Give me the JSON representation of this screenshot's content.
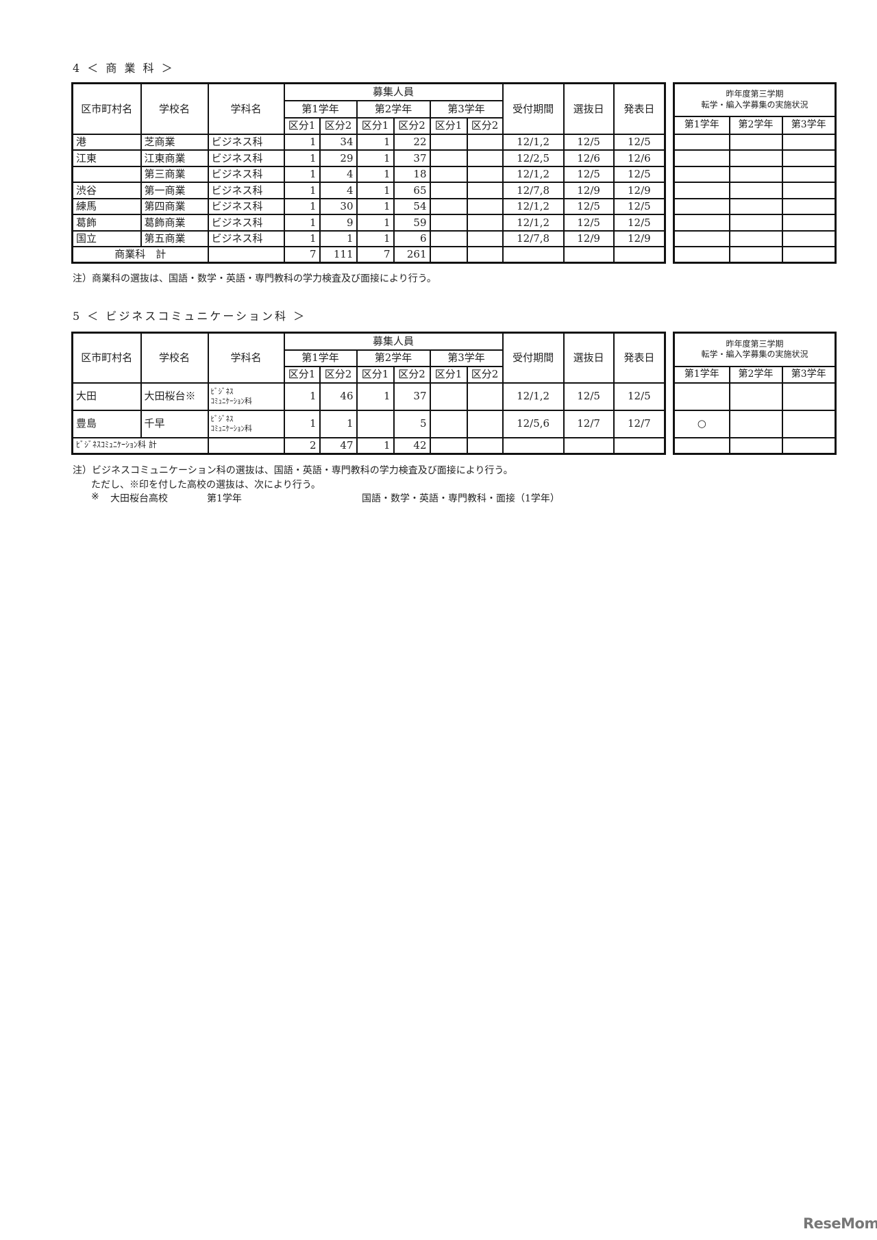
{
  "headers": {
    "municipality": "区市町村名",
    "school": "学校名",
    "department": "学科名",
    "recruitment": "募集人員",
    "grades": [
      "第1学年",
      "第2学年",
      "第3学年"
    ],
    "divisions": [
      "区分1",
      "区分2"
    ],
    "reception": "受付期間",
    "selection_date": "選抜日",
    "announcement_date": "発表日",
    "side_title": "昨年度第三学期\n転学・編入学募集の実施状況"
  },
  "sections": [
    {
      "heading": "4 ＜ 商 業 科 ＞",
      "rows": [
        {
          "municipality": "港",
          "school": "芝商業",
          "department": "ビジネス科",
          "values": [
            "1",
            "34",
            "1",
            "22",
            "",
            ""
          ],
          "reception": "12/1,2",
          "selection": "12/5",
          "announcement": "12/5",
          "prev": [
            "",
            "",
            ""
          ]
        },
        {
          "municipality": "江東",
          "school": "江東商業",
          "department": "ビジネス科",
          "values": [
            "1",
            "29",
            "1",
            "37",
            "",
            ""
          ],
          "reception": "12/2,5",
          "selection": "12/6",
          "announcement": "12/6",
          "prev": [
            "",
            "",
            ""
          ]
        },
        {
          "municipality": "",
          "school": "第三商業",
          "department": "ビジネス科",
          "values": [
            "1",
            "4",
            "1",
            "18",
            "",
            ""
          ],
          "reception": "12/1,2",
          "selection": "12/5",
          "announcement": "12/5",
          "prev": [
            "",
            "",
            ""
          ]
        },
        {
          "municipality": "渋谷",
          "school": "第一商業",
          "department": "ビジネス科",
          "values": [
            "1",
            "4",
            "1",
            "65",
            "",
            ""
          ],
          "reception": "12/7,8",
          "selection": "12/9",
          "announcement": "12/9",
          "prev": [
            "",
            "",
            ""
          ]
        },
        {
          "municipality": "練馬",
          "school": "第四商業",
          "department": "ビジネス科",
          "values": [
            "1",
            "30",
            "1",
            "54",
            "",
            ""
          ],
          "reception": "12/1,2",
          "selection": "12/5",
          "announcement": "12/5",
          "prev": [
            "",
            "",
            ""
          ]
        },
        {
          "municipality": "葛飾",
          "school": "葛飾商業",
          "department": "ビジネス科",
          "values": [
            "1",
            "9",
            "1",
            "59",
            "",
            ""
          ],
          "reception": "12/1,2",
          "selection": "12/5",
          "announcement": "12/5",
          "prev": [
            "",
            "",
            ""
          ]
        },
        {
          "municipality": "国立",
          "school": "第五商業",
          "department": "ビジネス科",
          "values": [
            "1",
            "1",
            "1",
            "6",
            "",
            ""
          ],
          "reception": "12/7,8",
          "selection": "12/9",
          "announcement": "12/9",
          "prev": [
            "",
            "",
            ""
          ]
        }
      ],
      "total": {
        "label": "商業科　計",
        "values": [
          "7",
          "111",
          "7",
          "261",
          "",
          ""
        ]
      },
      "notes": [
        "注）商業科の選抜は、国語・数学・英語・専門教科の学力検査及び面接により行う。"
      ]
    },
    {
      "heading": "5 ＜ ビジネスコミュニケーション科 ＞",
      "rows": [
        {
          "municipality": "大田",
          "school": "大田桜台※",
          "department": "ﾋﾞｼﾞﾈｽ\nｺﾐｭﾆｹｰｼｮﾝ科",
          "values": [
            "1",
            "46",
            "1",
            "37",
            "",
            ""
          ],
          "reception": "12/1,2",
          "selection": "12/5",
          "announcement": "12/5",
          "prev": [
            "",
            "",
            ""
          ]
        },
        {
          "municipality": "豊島",
          "school": "千早",
          "department": "ﾋﾞｼﾞﾈｽ\nｺﾐｭﾆｹｰｼｮﾝ科",
          "values": [
            "1",
            "1",
            "",
            "5",
            "",
            ""
          ],
          "reception": "12/5,6",
          "selection": "12/7",
          "announcement": "12/7",
          "prev": [
            "○",
            "",
            ""
          ]
        }
      ],
      "total": {
        "label": "ﾋﾞｼﾞﾈｽｺﾐｭﾆｹｰｼｮﾝ科 計",
        "values": [
          "2",
          "47",
          "1",
          "42",
          "",
          ""
        ]
      },
      "notes": [
        "注）ビジネスコミュニケーション科の選抜は、国語・英語・専門教科の学力検査及び面接により行う。",
        "ただし、※印を付した高校の選抜は、次により行う。"
      ],
      "special": {
        "mark": "※",
        "school": "大田桜台高校",
        "grade": "第1学年",
        "subjects": "国語・数学・英語・専門教科・面接（1学年）"
      }
    }
  ],
  "watermark": "ReseMom"
}
